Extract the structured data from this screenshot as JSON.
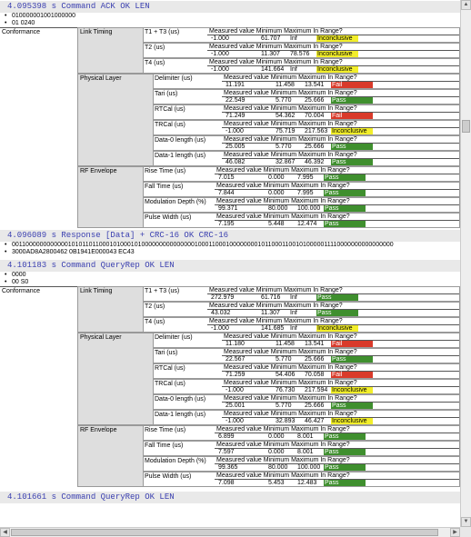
{
  "events": [
    {
      "text": "4.095398 s Command ACK OK LEN",
      "bullets": [
        "010000001001000000",
        "01 0240"
      ]
    },
    {
      "text": "4.096089 s Response [Data] + CRC-16 OK CRC-16",
      "bullets": [
        "0011000000000000101011011000101000101000000000000000100011000100000000101100011001010000011110000000000000000",
        "3000AD8A2800462 0B1941E000043 EC43"
      ]
    },
    {
      "text": "4.101183 s Command QueryRep OK LEN",
      "bullets": [
        "0000",
        "00 S0"
      ]
    },
    {
      "text": "4.101661 s Command QueryRep OK LEN",
      "bullets": []
    }
  ],
  "labels": {
    "conformance": "Conformance",
    "link_timing": "Link Timing",
    "physical_layer": "Physical Layer",
    "rf_envelope": "RF Envelope",
    "header": "Measured value Minimum Maximum In Range?"
  },
  "block1": {
    "link": [
      {
        "name": "T1 + T3 (us)",
        "v": "-1.000",
        "min": "61.707",
        "max": "Inf",
        "res": "Inconclusive",
        "cls": "inc"
      },
      {
        "name": "T2 (us)",
        "v": "-1.000",
        "min": "11.307",
        "max": "78.576",
        "res": "Inconclusive",
        "cls": "inc"
      },
      {
        "name": "T4 (us)",
        "v": "-1.000",
        "min": "141.664",
        "max": "Inf",
        "res": "Inconclusive",
        "cls": "inc"
      }
    ],
    "phys": [
      {
        "name": "Delimiter (us)",
        "v": "11.191",
        "min": "11.458",
        "max": "13.541",
        "res": "Fail",
        "cls": "fail"
      },
      {
        "name": "Tari (us)",
        "v": "22.549",
        "min": "5.770",
        "max": "25.666",
        "res": "Pass",
        "cls": "pass"
      },
      {
        "name": "RTCal (us)",
        "v": "71.249",
        "min": "54.362",
        "max": "70.004",
        "res": "Fail",
        "cls": "fail"
      },
      {
        "name": "TRCal (us)",
        "v": "-1.000",
        "min": "75.719",
        "max": "217.563",
        "res": "Inconclusive",
        "cls": "inc"
      },
      {
        "name": "Data-0 length (us)",
        "v": "25.005",
        "min": "5.770",
        "max": "25.666",
        "res": "Pass",
        "cls": "pass"
      },
      {
        "name": "Data-1 length (us)",
        "v": "46.082",
        "min": "32.867",
        "max": "46.392",
        "res": "Pass",
        "cls": "pass"
      }
    ],
    "rf": [
      {
        "name": "Rise Time (us)",
        "v": "7.015",
        "min": "0.000",
        "max": "7.995",
        "res": "Pass",
        "cls": "pass"
      },
      {
        "name": "Fall Time (us)",
        "v": "7.844",
        "min": "0.000",
        "max": "7.995",
        "res": "Pass",
        "cls": "pass"
      },
      {
        "name": "Modulation Depth (%)",
        "v": "99.371",
        "min": "80.000",
        "max": "100.000",
        "res": "Pass",
        "cls": "pass"
      },
      {
        "name": "Pulse Width (us)",
        "v": "7.195",
        "min": "5.448",
        "max": "12.474",
        "res": "Pass",
        "cls": "pass"
      }
    ]
  },
  "block2": {
    "link": [
      {
        "name": "T1 + T3 (us)",
        "v": "272.979",
        "min": "61.716",
        "max": "Inf",
        "res": "Pass",
        "cls": "pass"
      },
      {
        "name": "T2 (us)",
        "v": "43.032",
        "min": "11.307",
        "max": "Inf",
        "res": "Pass",
        "cls": "pass"
      },
      {
        "name": "T4 (us)",
        "v": "-1.000",
        "min": "141.685",
        "max": "Inf",
        "res": "Inconclusive",
        "cls": "inc"
      }
    ],
    "phys": [
      {
        "name": "Delimiter (us)",
        "v": "11.180",
        "min": "11.458",
        "max": "13.541",
        "res": "Fail",
        "cls": "fail"
      },
      {
        "name": "Tari (us)",
        "v": "22.567",
        "min": "5.770",
        "max": "25.666",
        "res": "Pass",
        "cls": "pass"
      },
      {
        "name": "RTCal (us)",
        "v": "71.259",
        "min": "54.406",
        "max": "70.058",
        "res": "Fail",
        "cls": "fail"
      },
      {
        "name": "TRCal (us)",
        "v": "-1.000",
        "min": "76.730",
        "max": "217.594",
        "res": "Inconclusive",
        "cls": "inc"
      },
      {
        "name": "Data-0 length (us)",
        "v": "25.001",
        "min": "5.770",
        "max": "25.666",
        "res": "Pass",
        "cls": "pass"
      },
      {
        "name": "Data-1 length (us)",
        "v": "-1.000",
        "min": "32.893",
        "max": "46.427",
        "res": "Inconclusive",
        "cls": "inc"
      }
    ],
    "rf": [
      {
        "name": "Rise Time (us)",
        "v": "6.899",
        "min": "0.000",
        "max": "8.001",
        "res": "Pass",
        "cls": "pass"
      },
      {
        "name": "Fall Time (us)",
        "v": "7.597",
        "min": "0.000",
        "max": "8.001",
        "res": "Pass",
        "cls": "pass"
      },
      {
        "name": "Modulation Depth (%)",
        "v": "99.365",
        "min": "80.000",
        "max": "100.000",
        "res": "Pass",
        "cls": "pass"
      },
      {
        "name": "Pulse Width (us)",
        "v": "7.098",
        "min": "5.453",
        "max": "12.483",
        "res": "Pass",
        "cls": "pass"
      }
    ]
  }
}
